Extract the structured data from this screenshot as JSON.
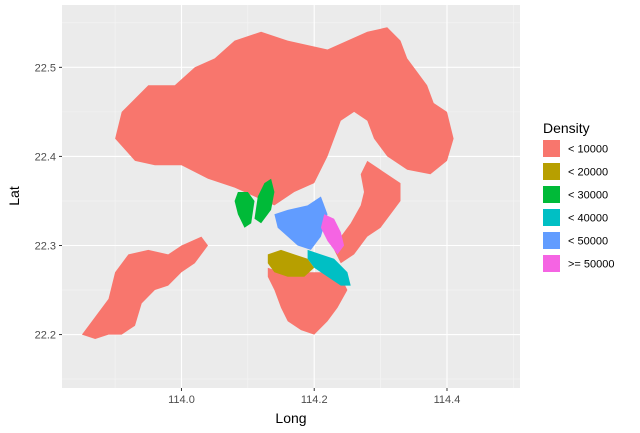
{
  "chart_data": {
    "type": "map",
    "xlabel": "Long",
    "ylabel": "Lat",
    "x_ticks": [
      114.0,
      114.2,
      114.4
    ],
    "x_tick_labels": [
      "114.0",
      "114.2",
      "114.4"
    ],
    "y_ticks": [
      22.2,
      22.3,
      22.4,
      22.5
    ],
    "y_tick_labels": [
      "22.2",
      "22.3",
      "22.4",
      "22.5"
    ],
    "xlim": [
      113.82,
      114.51
    ],
    "ylim": [
      22.14,
      22.57
    ],
    "grid": true,
    "legend_position": "right",
    "legend": {
      "title": "Density",
      "entries": [
        {
          "label": "< 10000",
          "color": "#F8766D"
        },
        {
          "label": "< 20000",
          "color": "#B79F00"
        },
        {
          "label": "< 30000",
          "color": "#00BA38"
        },
        {
          "label": "< 40000",
          "color": "#00BFC4"
        },
        {
          "label": "< 50000",
          "color": "#619CFF"
        },
        {
          "label": ">= 50000",
          "color": "#F564E3"
        }
      ]
    },
    "regions": [
      {
        "density": "< 10000",
        "points": [
          [
            114.12,
            22.54
          ],
          [
            114.16,
            22.53
          ],
          [
            114.22,
            22.52
          ],
          [
            114.28,
            22.54
          ],
          [
            114.31,
            22.545
          ],
          [
            114.33,
            22.53
          ],
          [
            114.34,
            22.51
          ],
          [
            114.35,
            22.5
          ],
          [
            114.37,
            22.48
          ],
          [
            114.38,
            22.46
          ],
          [
            114.4,
            22.45
          ],
          [
            114.41,
            22.42
          ],
          [
            114.4,
            22.395
          ],
          [
            114.375,
            22.38
          ],
          [
            114.34,
            22.385
          ],
          [
            114.31,
            22.4
          ],
          [
            114.29,
            22.42
          ],
          [
            114.28,
            22.44
          ],
          [
            114.26,
            22.45
          ],
          [
            114.24,
            22.44
          ],
          [
            114.22,
            22.4
          ],
          [
            114.2,
            22.37
          ],
          [
            114.17,
            22.36
          ],
          [
            114.14,
            22.345
          ],
          [
            114.11,
            22.355
          ],
          [
            114.08,
            22.365
          ],
          [
            114.04,
            22.375
          ],
          [
            114.0,
            22.39
          ],
          [
            113.96,
            22.39
          ],
          [
            113.93,
            22.395
          ],
          [
            113.9,
            22.42
          ],
          [
            113.91,
            22.45
          ],
          [
            113.95,
            22.48
          ],
          [
            113.99,
            22.48
          ],
          [
            114.02,
            22.5
          ],
          [
            114.05,
            22.51
          ],
          [
            114.08,
            22.53
          ]
        ]
      },
      {
        "density": "< 10000",
        "points": [
          [
            114.28,
            22.395
          ],
          [
            114.3,
            22.385
          ],
          [
            114.33,
            22.37
          ],
          [
            114.33,
            22.35
          ],
          [
            114.32,
            22.34
          ],
          [
            114.3,
            22.32
          ],
          [
            114.28,
            22.31
          ],
          [
            114.26,
            22.29
          ],
          [
            114.24,
            22.28
          ],
          [
            114.23,
            22.295
          ],
          [
            114.24,
            22.31
          ],
          [
            114.255,
            22.325
          ],
          [
            114.27,
            22.345
          ],
          [
            114.275,
            22.36
          ],
          [
            114.27,
            22.38
          ]
        ]
      },
      {
        "density": "< 10000",
        "points": [
          [
            113.85,
            22.2
          ],
          [
            113.87,
            22.22
          ],
          [
            113.89,
            22.24
          ],
          [
            113.9,
            22.27
          ],
          [
            113.92,
            22.29
          ],
          [
            113.95,
            22.295
          ],
          [
            113.98,
            22.29
          ],
          [
            114.0,
            22.3
          ],
          [
            114.03,
            22.31
          ],
          [
            114.04,
            22.3
          ],
          [
            114.02,
            22.28
          ],
          [
            114.0,
            22.27
          ],
          [
            113.98,
            22.255
          ],
          [
            113.96,
            22.25
          ],
          [
            113.94,
            22.235
          ],
          [
            113.93,
            22.21
          ],
          [
            113.91,
            22.2
          ],
          [
            113.89,
            22.2
          ],
          [
            113.87,
            22.195
          ]
        ]
      },
      {
        "density": "< 10000",
        "points": [
          [
            114.13,
            22.275
          ],
          [
            114.15,
            22.27
          ],
          [
            114.18,
            22.27
          ],
          [
            114.21,
            22.27
          ],
          [
            114.24,
            22.265
          ],
          [
            114.25,
            22.25
          ],
          [
            114.235,
            22.23
          ],
          [
            114.22,
            22.215
          ],
          [
            114.2,
            22.2
          ],
          [
            114.18,
            22.205
          ],
          [
            114.16,
            22.215
          ],
          [
            114.15,
            22.23
          ],
          [
            114.14,
            22.25
          ],
          [
            114.13,
            22.265
          ]
        ]
      },
      {
        "density": "< 20000",
        "points": [
          [
            114.13,
            22.29
          ],
          [
            114.15,
            22.295
          ],
          [
            114.17,
            22.29
          ],
          [
            114.19,
            22.285
          ],
          [
            114.2,
            22.275
          ],
          [
            114.185,
            22.265
          ],
          [
            114.16,
            22.265
          ],
          [
            114.14,
            22.27
          ],
          [
            114.13,
            22.28
          ]
        ]
      },
      {
        "density": "< 30000",
        "points": [
          [
            114.085,
            22.36
          ],
          [
            114.1,
            22.36
          ],
          [
            114.11,
            22.35
          ],
          [
            114.105,
            22.325
          ],
          [
            114.095,
            22.32
          ],
          [
            114.085,
            22.335
          ],
          [
            114.08,
            22.35
          ]
        ]
      },
      {
        "density": "< 30000",
        "points": [
          [
            114.125,
            22.37
          ],
          [
            114.135,
            22.375
          ],
          [
            114.14,
            22.36
          ],
          [
            114.135,
            22.34
          ],
          [
            114.12,
            22.325
          ],
          [
            114.11,
            22.33
          ],
          [
            114.115,
            22.355
          ]
        ]
      },
      {
        "density": "< 40000",
        "points": [
          [
            114.19,
            22.295
          ],
          [
            114.21,
            22.29
          ],
          [
            114.23,
            22.285
          ],
          [
            114.25,
            22.27
          ],
          [
            114.255,
            22.255
          ],
          [
            114.24,
            22.255
          ],
          [
            114.22,
            22.265
          ],
          [
            114.2,
            22.275
          ],
          [
            114.19,
            22.285
          ]
        ]
      },
      {
        "density": "< 50000",
        "points": [
          [
            114.14,
            22.335
          ],
          [
            114.16,
            22.34
          ],
          [
            114.19,
            22.345
          ],
          [
            114.21,
            22.355
          ],
          [
            114.22,
            22.335
          ],
          [
            114.21,
            22.31
          ],
          [
            114.195,
            22.295
          ],
          [
            114.175,
            22.3
          ],
          [
            114.16,
            22.31
          ],
          [
            114.145,
            22.32
          ]
        ]
      },
      {
        "density": ">= 50000",
        "points": [
          [
            114.215,
            22.335
          ],
          [
            114.23,
            22.33
          ],
          [
            114.24,
            22.315
          ],
          [
            114.245,
            22.3
          ],
          [
            114.235,
            22.29
          ],
          [
            114.22,
            22.305
          ],
          [
            114.21,
            22.32
          ]
        ]
      }
    ]
  }
}
